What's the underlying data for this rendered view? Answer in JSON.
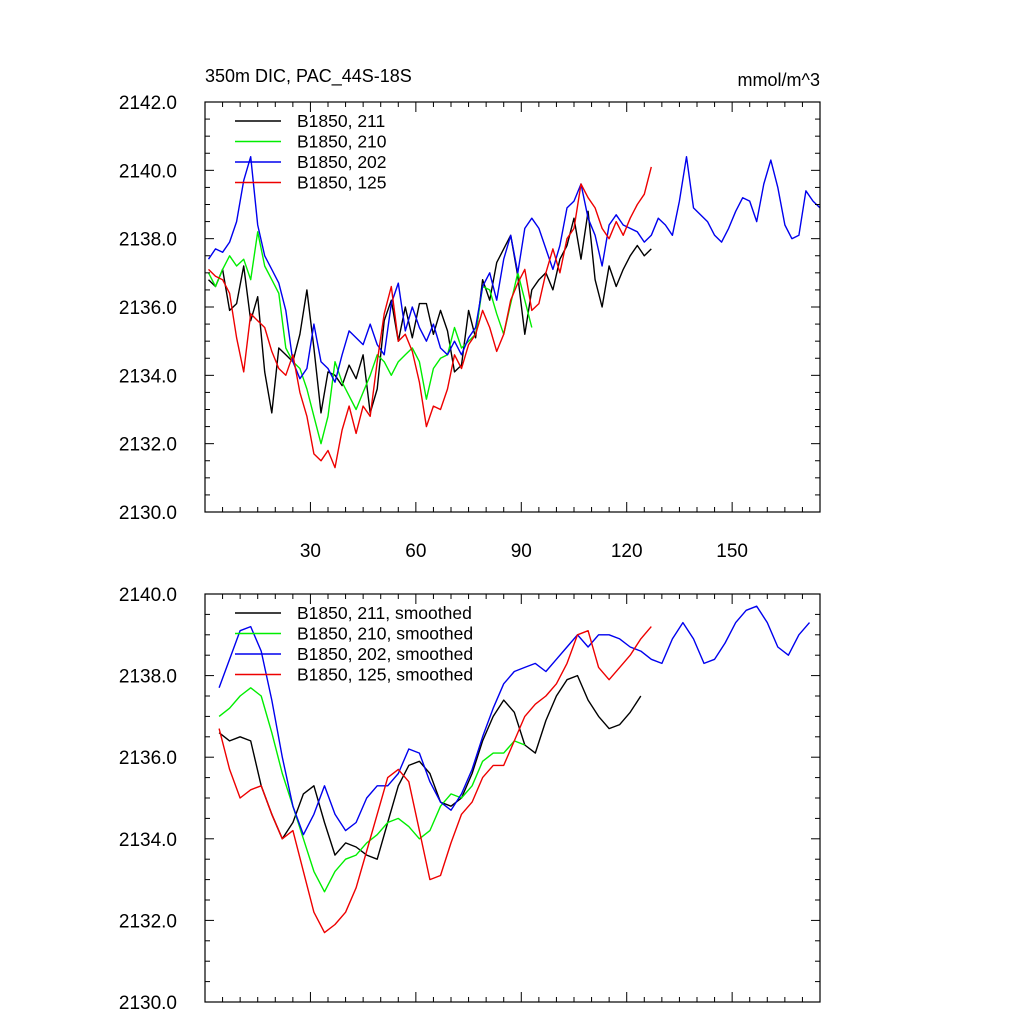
{
  "chart_data": [
    {
      "type": "line",
      "title": "350m DIC, PAC_44S-18S",
      "units": "mmol/m^3",
      "xlim": [
        0,
        175
      ],
      "ylim": [
        2130,
        2142
      ],
      "xticks": [
        30,
        60,
        90,
        120,
        150
      ],
      "yticks": [
        2130,
        2132,
        2134,
        2136,
        2138,
        2140,
        2142
      ],
      "ytick_labels": [
        "2130.0",
        "2132.0",
        "2134.0",
        "2136.0",
        "2138.0",
        "2140.0",
        "2142.0"
      ],
      "xtick_labels": [
        "30",
        "60",
        "90",
        "120",
        "150"
      ],
      "legend_position": "top-left",
      "series": [
        {
          "name": "B1850, 211",
          "color": "#000000",
          "x": [
            1,
            3,
            5,
            7,
            9,
            11,
            13,
            15,
            17,
            19,
            21,
            23,
            25,
            27,
            29,
            31,
            33,
            35,
            37,
            39,
            41,
            43,
            45,
            47,
            49,
            51,
            53,
            55,
            57,
            59,
            61,
            63,
            65,
            67,
            69,
            71,
            73,
            75,
            77,
            79,
            81,
            83,
            85,
            87,
            89,
            91,
            93,
            95,
            97,
            99,
            101,
            103,
            105,
            107,
            109,
            111,
            113,
            115,
            117,
            119,
            121,
            123,
            125,
            127
          ],
          "y": [
            2136.8,
            2136.6,
            2137.1,
            2135.9,
            2136.1,
            2137.2,
            2135.6,
            2136.3,
            2134.1,
            2132.9,
            2134.8,
            2134.6,
            2134.4,
            2135.2,
            2136.5,
            2134.8,
            2132.9,
            2134.1,
            2134.0,
            2133.7,
            2134.3,
            2133.9,
            2134.6,
            2132.9,
            2133.6,
            2135.6,
            2136.2,
            2135.0,
            2136.0,
            2135.1,
            2136.1,
            2136.1,
            2135.2,
            2135.9,
            2135.3,
            2134.1,
            2134.3,
            2135.9,
            2135.1,
            2136.8,
            2136.2,
            2137.3,
            2137.7,
            2138.1,
            2136.9,
            2135.2,
            2136.5,
            2136.8,
            2137.0,
            2136.5,
            2137.4,
            2137.8,
            2138.6,
            2137.4,
            2138.8,
            2136.8,
            2136.0,
            2137.2,
            2136.6,
            2137.1,
            2137.5,
            2137.8,
            2137.5,
            2137.7
          ]
        },
        {
          "name": "B1850, 210",
          "color": "#00ee00",
          "x": [
            1,
            3,
            5,
            7,
            9,
            11,
            13,
            15,
            17,
            19,
            21,
            23,
            25,
            27,
            29,
            31,
            33,
            35,
            37,
            39,
            41,
            43,
            45,
            47,
            49,
            51,
            53,
            55,
            57,
            59,
            61,
            63,
            65,
            67,
            69,
            71,
            73,
            75,
            77,
            79,
            81,
            83,
            85,
            87,
            89,
            91,
            93
          ],
          "y": [
            2137.0,
            2136.6,
            2137.1,
            2137.5,
            2137.2,
            2137.4,
            2136.8,
            2138.2,
            2137.2,
            2136.8,
            2136.4,
            2134.8,
            2134.4,
            2134.2,
            2133.6,
            2132.8,
            2132.0,
            2132.8,
            2134.4,
            2133.8,
            2133.4,
            2133.0,
            2133.5,
            2134.0,
            2134.6,
            2134.4,
            2134.0,
            2134.4,
            2134.6,
            2134.8,
            2134.4,
            2133.3,
            2134.2,
            2134.5,
            2134.6,
            2135.4,
            2134.8,
            2135.0,
            2135.2,
            2136.6,
            2136.5,
            2135.8,
            2135.2,
            2136.1,
            2137.0,
            2136.2,
            2135.4
          ]
        },
        {
          "name": "B1850, 202",
          "color": "#0000ee",
          "x": [
            1,
            3,
            5,
            7,
            9,
            11,
            13,
            15,
            17,
            19,
            21,
            23,
            25,
            27,
            29,
            31,
            33,
            35,
            37,
            39,
            41,
            43,
            45,
            47,
            49,
            51,
            53,
            55,
            57,
            59,
            61,
            63,
            65,
            67,
            69,
            71,
            73,
            75,
            77,
            79,
            81,
            83,
            85,
            87,
            89,
            91,
            93,
            95,
            97,
            99,
            101,
            103,
            105,
            107,
            109,
            111,
            113,
            115,
            117,
            119,
            121,
            123,
            125,
            127,
            129,
            131,
            133,
            135,
            137,
            139,
            141,
            143,
            145,
            147,
            149,
            151,
            153,
            155,
            157,
            159,
            161,
            163,
            165,
            167,
            169,
            171,
            173,
            175
          ],
          "y": [
            2137.4,
            2137.7,
            2137.6,
            2137.9,
            2138.5,
            2139.7,
            2140.4,
            2138.4,
            2137.5,
            2137.1,
            2136.7,
            2135.9,
            2134.4,
            2133.9,
            2134.2,
            2135.5,
            2134.4,
            2134.2,
            2133.8,
            2134.6,
            2135.3,
            2135.1,
            2134.9,
            2135.5,
            2134.9,
            2134.6,
            2136.1,
            2136.7,
            2135.3,
            2136.0,
            2135.4,
            2135.0,
            2135.5,
            2134.8,
            2134.6,
            2135.0,
            2134.6,
            2135.1,
            2135.4,
            2136.6,
            2137.0,
            2136.2,
            2137.4,
            2138.1,
            2137.0,
            2138.3,
            2138.6,
            2138.3,
            2137.7,
            2137.1,
            2137.8,
            2138.9,
            2139.1,
            2139.6,
            2138.6,
            2138.1,
            2137.2,
            2138.4,
            2138.7,
            2138.4,
            2138.3,
            2138.2,
            2137.9,
            2138.1,
            2138.6,
            2138.4,
            2138.1,
            2139.1,
            2140.4,
            2138.9,
            2138.7,
            2138.5,
            2138.1,
            2137.9,
            2138.3,
            2138.8,
            2139.2,
            2139.1,
            2138.5,
            2139.6,
            2140.3,
            2139.5,
            2138.4,
            2138.0,
            2138.1,
            2139.4,
            2139.1,
            2138.9
          ]
        },
        {
          "name": "B1850, 125",
          "color": "#ee0000",
          "x": [
            1,
            3,
            5,
            7,
            9,
            11,
            13,
            15,
            17,
            19,
            21,
            23,
            25,
            27,
            29,
            31,
            33,
            35,
            37,
            39,
            41,
            43,
            45,
            47,
            49,
            51,
            53,
            55,
            57,
            59,
            61,
            63,
            65,
            67,
            69,
            71,
            73,
            75,
            77,
            79,
            81,
            83,
            85,
            87,
            89,
            91,
            93,
            95,
            97,
            99,
            101,
            103,
            105,
            107,
            109,
            111,
            113,
            115,
            117,
            119,
            121,
            123,
            125,
            127
          ],
          "y": [
            2137.1,
            2136.9,
            2136.8,
            2136.4,
            2135.1,
            2134.1,
            2135.8,
            2135.6,
            2135.4,
            2134.7,
            2134.2,
            2134.0,
            2134.6,
            2133.5,
            2132.8,
            2131.7,
            2131.5,
            2131.8,
            2131.3,
            2132.4,
            2133.1,
            2132.3,
            2133.1,
            2132.8,
            2134.4,
            2135.8,
            2136.6,
            2135.0,
            2135.2,
            2134.7,
            2133.8,
            2132.5,
            2133.1,
            2133.0,
            2133.6,
            2134.6,
            2134.2,
            2134.9,
            2135.2,
            2135.9,
            2135.4,
            2134.7,
            2135.2,
            2136.2,
            2136.7,
            2137.1,
            2135.9,
            2136.1,
            2137.0,
            2137.7,
            2137.0,
            2138.0,
            2138.3,
            2139.6,
            2139.2,
            2138.9,
            2138.3,
            2138.0,
            2138.5,
            2138.1,
            2138.6,
            2139.0,
            2139.3,
            2140.1
          ]
        }
      ]
    },
    {
      "type": "line",
      "title": "",
      "units": "",
      "xlim": [
        0,
        175
      ],
      "ylim": [
        2130,
        2140
      ],
      "xticks": [
        30,
        60,
        90,
        120,
        150
      ],
      "yticks": [
        2130,
        2132,
        2134,
        2136,
        2138,
        2140
      ],
      "ytick_labels": [
        "2130.0",
        "2132.0",
        "2134.0",
        "2136.0",
        "2138.0",
        "2140.0"
      ],
      "xtick_labels": [],
      "legend_position": "top-left",
      "series": [
        {
          "name": "B1850, 211, smoothed",
          "color": "#000000",
          "x": [
            4,
            7,
            10,
            13,
            16,
            19,
            22,
            25,
            28,
            31,
            34,
            37,
            40,
            43,
            46,
            49,
            52,
            55,
            58,
            61,
            64,
            67,
            70,
            73,
            76,
            79,
            82,
            85,
            88,
            91,
            94,
            97,
            100,
            103,
            106,
            109,
            112,
            115,
            118,
            121,
            124
          ],
          "y": [
            2136.6,
            2136.4,
            2136.5,
            2136.4,
            2135.3,
            2134.6,
            2134.0,
            2134.4,
            2135.1,
            2135.3,
            2134.4,
            2133.6,
            2133.9,
            2133.8,
            2133.6,
            2133.5,
            2134.4,
            2135.3,
            2135.8,
            2135.9,
            2135.6,
            2134.9,
            2134.8,
            2135.0,
            2135.6,
            2136.4,
            2137.0,
            2137.4,
            2137.1,
            2136.3,
            2136.1,
            2136.9,
            2137.5,
            2137.9,
            2138.0,
            2137.4,
            2137.0,
            2136.7,
            2136.8,
            2137.1,
            2137.5
          ]
        },
        {
          "name": "B1850, 210, smoothed",
          "color": "#00ee00",
          "x": [
            4,
            7,
            10,
            13,
            16,
            19,
            22,
            25,
            28,
            31,
            34,
            37,
            40,
            43,
            46,
            49,
            52,
            55,
            58,
            61,
            64,
            67,
            70,
            73,
            76,
            79,
            82,
            85,
            88,
            91
          ],
          "y": [
            2137.0,
            2137.2,
            2137.5,
            2137.7,
            2137.5,
            2136.6,
            2135.6,
            2134.8,
            2134.0,
            2133.2,
            2132.7,
            2133.2,
            2133.5,
            2133.6,
            2133.9,
            2134.1,
            2134.4,
            2134.5,
            2134.3,
            2134.0,
            2134.2,
            2134.8,
            2135.1,
            2135.0,
            2135.3,
            2135.9,
            2136.1,
            2136.1,
            2136.4,
            2136.3
          ]
        },
        {
          "name": "B1850, 202, smoothed",
          "color": "#0000ee",
          "x": [
            4,
            7,
            10,
            13,
            16,
            19,
            22,
            25,
            28,
            31,
            34,
            37,
            40,
            43,
            46,
            49,
            52,
            55,
            58,
            61,
            64,
            67,
            70,
            73,
            76,
            79,
            82,
            85,
            88,
            91,
            94,
            97,
            100,
            103,
            106,
            109,
            112,
            115,
            118,
            121,
            124,
            127,
            130,
            133,
            136,
            139,
            142,
            145,
            148,
            151,
            154,
            157,
            160,
            163,
            166,
            169,
            172
          ],
          "y": [
            2137.7,
            2138.4,
            2139.1,
            2139.2,
            2138.6,
            2137.4,
            2136.0,
            2134.8,
            2134.1,
            2134.6,
            2135.3,
            2134.6,
            2134.2,
            2134.4,
            2135.0,
            2135.3,
            2135.3,
            2135.6,
            2136.2,
            2136.1,
            2135.4,
            2134.9,
            2134.7,
            2135.1,
            2135.7,
            2136.5,
            2137.2,
            2137.8,
            2138.1,
            2138.2,
            2138.3,
            2138.1,
            2138.4,
            2138.7,
            2139.0,
            2138.7,
            2139.0,
            2139.0,
            2138.9,
            2138.7,
            2138.6,
            2138.4,
            2138.3,
            2138.9,
            2139.3,
            2138.9,
            2138.3,
            2138.4,
            2138.8,
            2139.3,
            2139.6,
            2139.7,
            2139.3,
            2138.7,
            2138.5,
            2139.0,
            2139.3
          ]
        },
        {
          "name": "B1850, 125, smoothed",
          "color": "#ee0000",
          "x": [
            4,
            7,
            10,
            13,
            16,
            19,
            22,
            25,
            28,
            31,
            34,
            37,
            40,
            43,
            46,
            49,
            52,
            55,
            58,
            61,
            64,
            67,
            70,
            73,
            76,
            79,
            82,
            85,
            88,
            91,
            94,
            97,
            100,
            103,
            106,
            109,
            112,
            115,
            118,
            121,
            124,
            127
          ],
          "y": [
            2136.7,
            2135.7,
            2135.0,
            2135.2,
            2135.3,
            2134.6,
            2134.0,
            2134.2,
            2133.2,
            2132.2,
            2131.7,
            2131.9,
            2132.2,
            2132.8,
            2133.7,
            2134.6,
            2135.5,
            2135.7,
            2135.4,
            2134.2,
            2133.0,
            2133.1,
            2133.9,
            2134.6,
            2134.9,
            2135.5,
            2135.8,
            2135.8,
            2136.4,
            2137.0,
            2137.3,
            2137.5,
            2137.8,
            2138.3,
            2139.0,
            2139.1,
            2138.2,
            2137.9,
            2138.2,
            2138.5,
            2138.9,
            2139.2
          ]
        }
      ]
    }
  ]
}
